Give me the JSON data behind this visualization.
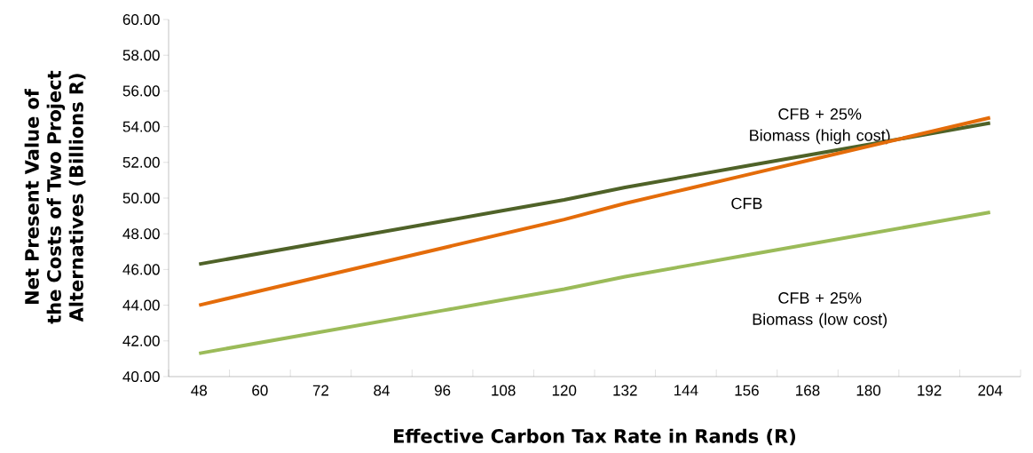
{
  "chart_data": {
    "type": "line",
    "xlabel": "Effective Carbon Tax Rate in Rands (R)",
    "ylabel": "Net Present Value of the Costs of Two Project Alternatives (Billions R)",
    "categories": [
      "48",
      "60",
      "72",
      "84",
      "96",
      "108",
      "120",
      "132",
      "144",
      "156",
      "168",
      "180",
      "192",
      "204"
    ],
    "series": [
      {
        "name": "CFB + 25% Biomass (high cost)",
        "color": "#4f6228",
        "values": [
          46.3,
          46.9,
          47.5,
          48.1,
          48.7,
          49.3,
          49.9,
          50.6,
          51.2,
          51.8,
          52.4,
          53.0,
          53.6,
          54.2
        ]
      },
      {
        "name": "CFB",
        "color": "#e46c0a",
        "values": [
          44.0,
          44.8,
          45.6,
          46.4,
          47.2,
          48.0,
          48.8,
          49.7,
          50.5,
          51.3,
          52.1,
          52.9,
          53.7,
          54.5
        ]
      },
      {
        "name": "CFB + 25% Biomass (low cost)",
        "color": "#9bbb59",
        "values": [
          41.3,
          41.9,
          42.5,
          43.1,
          43.7,
          44.3,
          44.9,
          45.6,
          46.2,
          46.8,
          47.4,
          48.0,
          48.6,
          49.2
        ]
      }
    ],
    "ylim": [
      40,
      60
    ],
    "yticks": [
      {
        "value": 40,
        "label": "40.00"
      },
      {
        "value": 42,
        "label": "42.00"
      },
      {
        "value": 44,
        "label": "44.00"
      },
      {
        "value": 46,
        "label": "46.00"
      },
      {
        "value": 48,
        "label": "48.00"
      },
      {
        "value": 50,
        "label": "50.00"
      },
      {
        "value": 52,
        "label": "52.00"
      },
      {
        "value": 54,
        "label": "54.00"
      },
      {
        "value": 56,
        "label": "56.00"
      },
      {
        "value": 58,
        "label": "58.00"
      },
      {
        "value": 60,
        "label": "60.00"
      }
    ],
    "grid": false,
    "legend": false,
    "marker": "none",
    "line_style": "solid"
  }
}
